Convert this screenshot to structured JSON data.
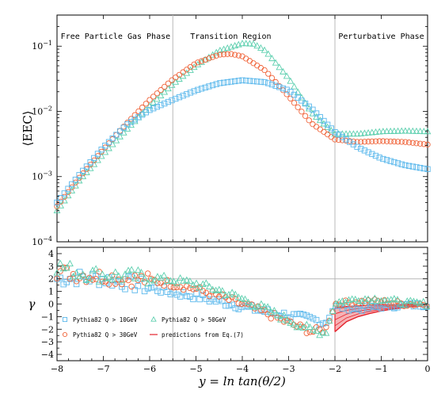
{
  "chart_data": [
    {
      "type": "scatter",
      "panel": "top",
      "ylabel": "⟨EEC⟩",
      "yscale": "log",
      "ylim": [
        0.0001,
        0.3
      ],
      "xlim": [
        -8,
        0
      ],
      "yticks": [
        {
          "value": 0.0001,
          "base": "10",
          "exp": "−4"
        },
        {
          "value": 0.001,
          "base": "10",
          "exp": "−3"
        },
        {
          "value": 0.01,
          "base": "10",
          "exp": "−2"
        },
        {
          "value": 0.1,
          "base": "10",
          "exp": "−1"
        }
      ],
      "vlines": [
        -5.5,
        -2.0
      ],
      "regions": [
        {
          "label": "Free  Particle  Gas  Phase",
          "x": -7.92
        },
        {
          "label": "Transition  Region",
          "x": -4.25
        },
        {
          "label": "Perturbative  Phase",
          "x": -1.0
        }
      ],
      "series": [
        {
          "key": "q10",
          "marker": "square",
          "color": "#5bb8ec",
          "x": [
            -8.0,
            -7.5,
            -7.0,
            -6.5,
            -6.0,
            -5.5,
            -5.0,
            -4.5,
            -4.0,
            -3.5,
            -3.0,
            -2.5,
            -2.0,
            -1.5,
            -1.0,
            -0.5,
            0.0
          ],
          "y": [
            0.0004,
            0.0011,
            0.0028,
            0.0062,
            0.0105,
            0.015,
            0.021,
            0.027,
            0.03,
            0.028,
            0.021,
            0.011,
            0.0048,
            0.0028,
            0.0019,
            0.0015,
            0.0013
          ]
        },
        {
          "key": "q30",
          "marker": "circle",
          "color": "#f0643a",
          "x": [
            -8.0,
            -7.5,
            -7.0,
            -6.5,
            -6.0,
            -5.5,
            -5.0,
            -4.5,
            -4.25,
            -4.0,
            -3.5,
            -3.0,
            -2.5,
            -2.0,
            -1.5,
            -1.0,
            -0.5,
            0.0
          ],
          "y": [
            0.00035,
            0.001,
            0.0026,
            0.0065,
            0.015,
            0.031,
            0.055,
            0.074,
            0.076,
            0.07,
            0.042,
            0.017,
            0.0065,
            0.0037,
            0.0034,
            0.0035,
            0.0034,
            0.0031
          ]
        },
        {
          "key": "q50",
          "marker": "triangle",
          "color": "#5ccfae",
          "x": [
            -8.0,
            -7.5,
            -7.0,
            -6.5,
            -6.0,
            -5.5,
            -5.0,
            -4.5,
            -4.0,
            -3.75,
            -3.5,
            -3.0,
            -2.5,
            -2.0,
            -1.5,
            -1.0,
            -0.5,
            0.0
          ],
          "y": [
            0.0003,
            0.0009,
            0.0022,
            0.0052,
            0.012,
            0.026,
            0.05,
            0.085,
            0.11,
            0.108,
            0.085,
            0.032,
            0.0095,
            0.0045,
            0.0045,
            0.0049,
            0.005,
            0.0049
          ]
        }
      ]
    },
    {
      "type": "scatter",
      "panel": "bottom",
      "ylabel": "γ",
      "xlabel": "y = ln tan(θ/2)",
      "ylim": [
        -4.5,
        4.5
      ],
      "xlim": [
        -8,
        0
      ],
      "yticks": [
        "4",
        "3",
        "2",
        "1",
        "0",
        "−1",
        "−2",
        "−3",
        "−4"
      ],
      "ytick_values": [
        4,
        3,
        2,
        1,
        0,
        -1,
        -2,
        -3,
        -4
      ],
      "xticks": [
        "−8",
        "−7",
        "−6",
        "−5",
        "−4",
        "−3",
        "−2",
        "−1",
        "0"
      ],
      "xtick_values": [
        -8,
        -7,
        -6,
        -5,
        -4,
        -3,
        -2,
        -1,
        0
      ],
      "hline": 2,
      "vlines": [
        -5.5,
        -2.0
      ],
      "series": [
        {
          "key": "q10",
          "marker": "square",
          "color": "#5bb8ec",
          "x": [
            -8.0,
            -7.5,
            -7.0,
            -6.5,
            -6.0,
            -5.5,
            -5.0,
            -4.5,
            -4.0,
            -3.5,
            -3.0,
            -2.5,
            -2.2,
            -2.0,
            -1.5,
            -1.0,
            -0.5,
            0.0
          ],
          "y": [
            2.0,
            2.1,
            2.0,
            1.7,
            1.3,
            0.9,
            0.6,
            0.2,
            -0.2,
            -0.6,
            -0.9,
            -1.2,
            -1.5,
            -0.2,
            -0.4,
            -0.2,
            -0.1,
            -0.05
          ]
        },
        {
          "key": "q30",
          "marker": "circle",
          "color": "#f0643a",
          "x": [
            -8.0,
            -7.5,
            -7.0,
            -6.5,
            -6.0,
            -5.5,
            -5.0,
            -4.5,
            -4.0,
            -3.5,
            -3.0,
            -2.5,
            -2.2,
            -2.0,
            -1.5,
            -1.0,
            -0.5,
            0.0
          ],
          "y": [
            2.6,
            2.3,
            2.2,
            2.0,
            1.9,
            1.6,
            1.2,
            0.6,
            0.0,
            -0.7,
            -1.5,
            -2.2,
            -2.0,
            0.0,
            0.2,
            0.2,
            0.0,
            0.0
          ]
        },
        {
          "key": "q50",
          "marker": "triangle",
          "color": "#5ccfae",
          "x": [
            -8.0,
            -7.5,
            -7.0,
            -6.5,
            -6.0,
            -5.5,
            -5.0,
            -4.5,
            -4.0,
            -3.5,
            -3.0,
            -2.5,
            -2.2,
            -2.0,
            -1.5,
            -1.0,
            -0.5,
            0.0
          ],
          "y": [
            3.0,
            2.5,
            2.3,
            2.2,
            2.1,
            1.9,
            1.6,
            1.1,
            0.4,
            -0.4,
            -1.3,
            -2.1,
            -2.3,
            0.1,
            0.4,
            0.4,
            0.1,
            0.0
          ]
        }
      ],
      "prediction": {
        "color": "#e4222c",
        "x": [
          -2.0,
          -1.75,
          -1.5,
          -1.25,
          -1.0,
          -0.75,
          -0.5,
          -0.25,
          0.0
        ],
        "upper": [
          -0.3,
          -0.2,
          -0.14,
          -0.1,
          -0.07,
          -0.05,
          -0.03,
          -0.02,
          -0.01
        ],
        "lower": [
          -2.2,
          -1.4,
          -1.0,
          -0.75,
          -0.55,
          -0.4,
          -0.28,
          -0.18,
          -0.1
        ]
      },
      "legend": {
        "placement": "bottom-left",
        "items": [
          {
            "key": "q10",
            "marker": "square",
            "color": "#5bb8ec",
            "label": "Pythia82  Q > 10GeV"
          },
          {
            "key": "q50",
            "marker": "triangle",
            "color": "#5ccfae",
            "label": "Pythia82  Q > 50GeV"
          },
          {
            "key": "q30",
            "marker": "circle",
            "color": "#f0643a",
            "label": "Pythia82  Q > 30GeV"
          },
          {
            "key": "pred",
            "marker": "line",
            "color": "#e4222c",
            "label": "predictions  from  Eq.(7)"
          }
        ]
      }
    }
  ]
}
